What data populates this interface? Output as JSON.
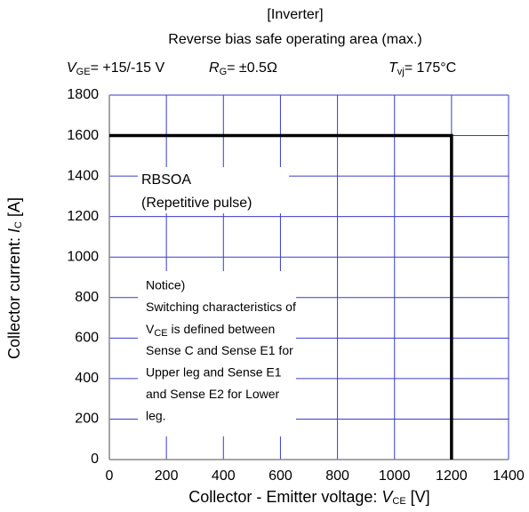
{
  "chart_data": {
    "type": "line",
    "title": "[Inverter]",
    "subtitle": "Reverse bias safe operating area (max.)",
    "conditions": [
      {
        "symbol": "V",
        "subscript": "GE",
        "text": "= +15/-15 V"
      },
      {
        "symbol": "R",
        "subscript": "G",
        "text": "=  ±0.5Ω"
      },
      {
        "symbol": "T",
        "subscript": "vj",
        "text": "= 175°C"
      }
    ],
    "x_label": {
      "text": "Collector - Emitter voltage: ",
      "symbol": "V",
      "subscript": "CE",
      "unit": " [V]"
    },
    "y_label": {
      "text": "Collector current: ",
      "symbol": "I",
      "subscript": "C",
      "unit": " [A]"
    },
    "annotation": [
      "RBSOA",
      "(Repetitive pulse)"
    ],
    "notice": [
      "Notice)",
      "Switching characteristics of",
      {
        "symbol": "V",
        "subscript": "CE",
        "text": " is defined between"
      },
      "Sense C and Sense E1 for",
      "Upper leg  and Sense  E1",
      "and Sense E2 for Lower",
      "leg."
    ],
    "xlim": [
      0,
      1400
    ],
    "xticks": [
      0,
      200,
      400,
      600,
      800,
      1000,
      1200,
      1400
    ],
    "ylim": [
      0,
      1800
    ],
    "yticks": [
      0,
      200,
      400,
      600,
      800,
      1000,
      1200,
      1400,
      1600,
      1800
    ],
    "grid": true,
    "grid_color": "#3a3acc",
    "series": [
      {
        "color": "#000000",
        "x": [
          0,
          1200,
          1200
        ],
        "values": [
          1600,
          1600,
          0
        ]
      }
    ]
  }
}
